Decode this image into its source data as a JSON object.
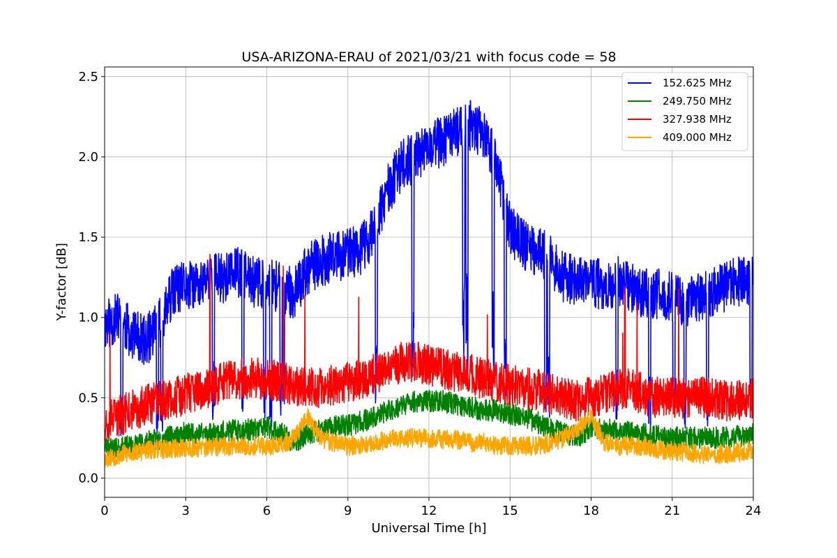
{
  "chart_data": {
    "type": "line",
    "title": "USA-ARIZONA-ERAU of 2021/03/21 with focus code = 58",
    "xlabel": "Universal Time [h]",
    "ylabel": "Y-factor [dB]",
    "xlim": [
      0,
      24
    ],
    "ylim": [
      -0.12,
      2.56
    ],
    "xticks": [
      "0",
      "3",
      "6",
      "9",
      "12",
      "15",
      "18",
      "21",
      "24"
    ],
    "yticks": [
      "0.0",
      "0.5",
      "1.0",
      "1.5",
      "2.0",
      "2.5"
    ],
    "grid": true,
    "legend_position": "top-right",
    "x": [
      0,
      0.5,
      1,
      1.5,
      2,
      2.5,
      3,
      3.5,
      4,
      4.5,
      5,
      5.5,
      6,
      6.5,
      7,
      7.5,
      8,
      8.5,
      9,
      9.5,
      10,
      10.5,
      11,
      11.5,
      12,
      12.5,
      13,
      13.5,
      14,
      14.5,
      15,
      15.5,
      16,
      16.5,
      17,
      17.5,
      18,
      18.5,
      19,
      19.5,
      20,
      20.5,
      21,
      21.5,
      22,
      22.5,
      23,
      23.5,
      24
    ],
    "series": [
      {
        "name": "152.625 MHz",
        "color": "#0000ff",
        "values": [
          0.95,
          1.0,
          0.9,
          0.85,
          0.95,
          1.15,
          1.2,
          1.2,
          1.25,
          1.25,
          1.28,
          1.22,
          1.22,
          1.18,
          1.15,
          1.3,
          1.35,
          1.38,
          1.4,
          1.42,
          1.55,
          1.8,
          1.95,
          2.0,
          2.05,
          2.1,
          2.15,
          2.2,
          2.15,
          1.95,
          1.55,
          1.45,
          1.42,
          1.35,
          1.25,
          1.22,
          1.22,
          1.2,
          1.22,
          1.18,
          1.15,
          1.15,
          1.12,
          1.1,
          1.12,
          1.15,
          1.2,
          1.22,
          1.25
        ]
      },
      {
        "name": "249.750 MHz",
        "color": "#008000",
        "values": [
          0.2,
          0.18,
          0.2,
          0.22,
          0.24,
          0.26,
          0.28,
          0.28,
          0.28,
          0.29,
          0.3,
          0.3,
          0.32,
          0.28,
          0.22,
          0.28,
          0.3,
          0.32,
          0.33,
          0.35,
          0.38,
          0.42,
          0.45,
          0.48,
          0.48,
          0.48,
          0.46,
          0.45,
          0.42,
          0.42,
          0.4,
          0.38,
          0.35,
          0.3,
          0.28,
          0.26,
          0.3,
          0.3,
          0.3,
          0.28,
          0.27,
          0.26,
          0.25,
          0.25,
          0.25,
          0.25,
          0.25,
          0.26,
          0.28
        ]
      },
      {
        "name": "327.938 MHz",
        "color": "#ff0000",
        "values": [
          0.35,
          0.38,
          0.42,
          0.45,
          0.48,
          0.5,
          0.52,
          0.55,
          0.57,
          0.6,
          0.62,
          0.62,
          0.62,
          0.6,
          0.58,
          0.57,
          0.56,
          0.58,
          0.6,
          0.62,
          0.65,
          0.68,
          0.72,
          0.72,
          0.7,
          0.68,
          0.66,
          0.65,
          0.62,
          0.6,
          0.58,
          0.56,
          0.55,
          0.52,
          0.5,
          0.48,
          0.5,
          0.52,
          0.55,
          0.55,
          0.52,
          0.5,
          0.5,
          0.5,
          0.5,
          0.5,
          0.48,
          0.48,
          0.5
        ]
      },
      {
        "name": "409.000 MHz",
        "color": "#ffa500",
        "values": [
          0.12,
          0.14,
          0.16,
          0.17,
          0.18,
          0.18,
          0.19,
          0.19,
          0.19,
          0.2,
          0.2,
          0.2,
          0.2,
          0.2,
          0.25,
          0.38,
          0.25,
          0.22,
          0.2,
          0.2,
          0.22,
          0.24,
          0.25,
          0.25,
          0.25,
          0.24,
          0.24,
          0.22,
          0.22,
          0.2,
          0.2,
          0.2,
          0.2,
          0.22,
          0.25,
          0.3,
          0.38,
          0.22,
          0.2,
          0.2,
          0.2,
          0.18,
          0.17,
          0.16,
          0.15,
          0.15,
          0.15,
          0.16,
          0.18
        ]
      }
    ]
  }
}
